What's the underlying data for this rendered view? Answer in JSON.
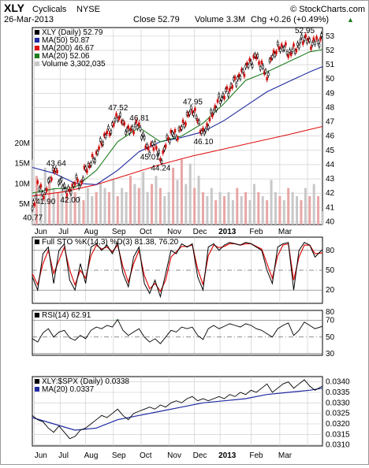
{
  "header": {
    "symbol": "XLY",
    "name": "Cyclicals",
    "exchange": "NYSE",
    "date": "26-Mar-2013",
    "close_text": "Close 52.79",
    "volume_text": "Volume 3.3M",
    "chg_text": "Chg +0.26 (+0.49%)",
    "chg_arrow": "▲",
    "copyright": "© StockCharts.com"
  },
  "colors": {
    "price": "#000000",
    "ma50": "#1f2aa0",
    "ma200": "#e01010",
    "ma20": "#1e7d1e",
    "volume_up": "#c8c8c8",
    "volume_down": "#e8a6a6",
    "sto_k": "#000000",
    "sto_d": "#e01010",
    "rsi": "#000000",
    "rsi_fill": "#6ab86a",
    "ratio": "#000000",
    "ratio_ma": "#1f2aa0",
    "chg_arrow": "#1e7d1e"
  },
  "x_labels": [
    "Jun",
    "Jul",
    "Aug",
    "Sep",
    "Oct",
    "Nov",
    "Dec",
    "2013",
    "Feb",
    "Mar"
  ],
  "chart_data": [
    {
      "type": "line",
      "legend": [
        {
          "label": "XLY (Daily) 52.79",
          "color_key": "price"
        },
        {
          "label": "MA(50) 50.87",
          "color_key": "ma50"
        },
        {
          "label": "MA(200) 46.67",
          "color_key": "ma200"
        },
        {
          "label": "MA(20) 52.06",
          "color_key": "ma20"
        },
        {
          "label": "Volume 3,302,035",
          "color_key": "volume_up"
        }
      ],
      "ylim": [
        39.8,
        53.6
      ],
      "y_ticks": [
        40,
        41,
        42,
        43,
        44,
        45,
        46,
        47,
        48,
        49,
        50,
        51,
        52,
        53
      ],
      "volume_ticks": [
        "5M",
        "10M",
        "15M",
        "20M"
      ],
      "volume_tick_values": [
        5,
        10,
        15,
        20
      ],
      "volume_ylim": [
        0,
        33
      ],
      "series": [
        {
          "key": "price",
          "x": [
            0,
            2,
            5,
            8,
            12,
            15,
            18,
            22,
            26,
            30,
            35,
            40,
            45,
            50,
            55,
            60,
            65,
            70,
            75,
            80,
            85,
            90,
            95,
            100,
            105,
            110,
            115,
            120,
            125,
            130,
            135,
            140,
            145,
            150,
            155,
            160,
            165,
            170,
            175,
            180,
            185,
            190,
            195,
            200,
            205,
            210,
            215,
            220,
            225,
            230,
            235,
            240,
            245,
            250,
            255,
            260,
            265,
            268,
            270,
            272
          ],
          "y": [
            40.77,
            41.3,
            42.6,
            42.2,
            41.9,
            42.7,
            43.3,
            43.64,
            42.8,
            42.4,
            42.0,
            42.9,
            42.6,
            43.7,
            44.1,
            44.7,
            45.6,
            46.2,
            46.6,
            47.52,
            46.9,
            46.3,
            46.6,
            46.81,
            45.6,
            45.01,
            45.5,
            44.24,
            45.4,
            46.2,
            46.0,
            46.6,
            47.3,
            47.95,
            47.1,
            46.1,
            46.9,
            47.8,
            48.5,
            48.9,
            49.3,
            49.9,
            50.2,
            50.8,
            51.2,
            51.6,
            50.9,
            50.2,
            51.7,
            52.1,
            52.3,
            51.8,
            52.0,
            52.4,
            52.95,
            52.5,
            52.6,
            52.7,
            52.79,
            52.79
          ]
        },
        {
          "key": "ma20",
          "x": [
            0,
            20,
            40,
            60,
            80,
            100,
            120,
            140,
            160,
            180,
            200,
            220,
            240,
            260,
            272
          ],
          "y": [
            42.0,
            42.3,
            42.4,
            43.6,
            45.6,
            46.6,
            45.6,
            46.0,
            46.9,
            48.3,
            49.9,
            50.5,
            51.2,
            51.9,
            52.06
          ]
        },
        {
          "key": "ma50",
          "x": [
            0,
            20,
            40,
            60,
            80,
            100,
            120,
            140,
            160,
            180,
            200,
            220,
            240,
            260,
            272
          ],
          "y": [
            43.8,
            43.4,
            42.7,
            42.6,
            43.6,
            44.9,
            45.6,
            45.9,
            46.3,
            47.1,
            48.1,
            49.1,
            49.8,
            50.5,
            50.87
          ]
        },
        {
          "key": "ma200",
          "x": [
            0,
            30,
            60,
            90,
            120,
            150,
            180,
            210,
            240,
            272
          ],
          "y": [
            41.8,
            42.1,
            42.6,
            43.3,
            44.0,
            44.6,
            45.1,
            45.6,
            46.1,
            46.67
          ]
        },
        {
          "key": "volume",
          "x": [
            0,
            4,
            8,
            12,
            16,
            20,
            24,
            28,
            32,
            36,
            40,
            44,
            48,
            52,
            56,
            60,
            64,
            68,
            72,
            76,
            80,
            84,
            88,
            92,
            96,
            100,
            104,
            108,
            112,
            116,
            120,
            124,
            128,
            132,
            136,
            140,
            144,
            148,
            152,
            156,
            160,
            164,
            168,
            172,
            176,
            180,
            184,
            188,
            192,
            196,
            200,
            204,
            208,
            212,
            216,
            220,
            224,
            228,
            232,
            236,
            240,
            244,
            248,
            252,
            256,
            260,
            264,
            268,
            272
          ],
          "y": [
            16,
            12,
            10,
            14,
            11,
            9,
            8,
            10,
            7,
            9,
            8,
            7,
            6,
            9,
            7,
            8,
            10,
            9,
            8,
            11,
            7,
            9,
            8,
            12,
            10,
            9,
            13,
            8,
            10,
            12,
            9,
            7,
            8,
            14,
            11,
            16,
            10,
            15,
            9,
            12,
            8,
            7,
            9,
            6,
            8,
            7,
            8,
            6,
            9,
            7,
            8,
            6,
            10,
            8,
            7,
            6,
            11,
            8,
            7,
            6,
            9,
            8,
            7,
            6,
            9,
            7,
            10,
            7,
            3.3
          ],
          "up": [
            1,
            0,
            1,
            1,
            0,
            1,
            0,
            1,
            0,
            1,
            0,
            1,
            0,
            1,
            1,
            0,
            1,
            1,
            0,
            1,
            0,
            1,
            1,
            0,
            1,
            0,
            1,
            1,
            0,
            1,
            0,
            1,
            1,
            0,
            1,
            0,
            1,
            1,
            0,
            1,
            0,
            1,
            1,
            0,
            1,
            0,
            1,
            1,
            0,
            1,
            0,
            1,
            1,
            0,
            1,
            0,
            1,
            1,
            0,
            1,
            0,
            1,
            1,
            0,
            1,
            0,
            1,
            0,
            1
          ]
        }
      ],
      "annotations": [
        {
          "x": 0,
          "y": 40.77,
          "text": "40.77"
        },
        {
          "x": 12,
          "y": 41.9,
          "text": "41.90"
        },
        {
          "x": 22,
          "y": 43.64,
          "text": "43.64"
        },
        {
          "x": 35,
          "y": 42.0,
          "text": "42.00"
        },
        {
          "x": 80,
          "y": 47.52,
          "text": "47.52"
        },
        {
          "x": 100,
          "y": 46.81,
          "text": "46.81"
        },
        {
          "x": 110,
          "y": 45.01,
          "text": "45.01"
        },
        {
          "x": 120,
          "y": 44.24,
          "text": "44.24"
        },
        {
          "x": 150,
          "y": 47.95,
          "text": "47.95"
        },
        {
          "x": 160,
          "y": 46.1,
          "text": "46.10"
        },
        {
          "x": 255,
          "y": 52.95,
          "text": "52.95"
        }
      ]
    },
    {
      "type": "line",
      "legend": [
        {
          "label": "Full STO %K(14,3) %D(3) 81.38, 76.20",
          "color_key": "sto_k"
        }
      ],
      "ylim": [
        0,
        100
      ],
      "y_ticks": [
        20,
        50,
        80
      ],
      "series": [
        {
          "key": "sto_k",
          "x": [
            0,
            5,
            10,
            15,
            20,
            25,
            30,
            35,
            40,
            45,
            50,
            55,
            60,
            65,
            70,
            75,
            80,
            85,
            90,
            95,
            100,
            105,
            110,
            115,
            120,
            125,
            130,
            135,
            140,
            145,
            150,
            155,
            160,
            165,
            170,
            175,
            180,
            185,
            190,
            195,
            200,
            205,
            210,
            215,
            220,
            225,
            230,
            235,
            240,
            245,
            250,
            255,
            260,
            265,
            272
          ],
          "y": [
            40,
            20,
            75,
            85,
            30,
            80,
            90,
            35,
            20,
            60,
            30,
            85,
            90,
            80,
            88,
            75,
            92,
            45,
            25,
            70,
            85,
            30,
            15,
            35,
            10,
            45,
            80,
            75,
            90,
            85,
            90,
            40,
            20,
            85,
            90,
            80,
            88,
            92,
            90,
            88,
            92,
            90,
            85,
            80,
            50,
            30,
            85,
            90,
            92,
            20,
            80,
            92,
            88,
            70,
            81.38
          ]
        },
        {
          "key": "sto_d",
          "x": [
            0,
            5,
            10,
            15,
            20,
            25,
            30,
            35,
            40,
            45,
            50,
            55,
            60,
            65,
            70,
            75,
            80,
            85,
            90,
            95,
            100,
            105,
            110,
            115,
            120,
            125,
            130,
            135,
            140,
            145,
            150,
            155,
            160,
            165,
            170,
            175,
            180,
            185,
            190,
            195,
            200,
            205,
            210,
            215,
            220,
            225,
            230,
            235,
            240,
            245,
            250,
            255,
            260,
            265,
            272
          ],
          "y": [
            45,
            28,
            60,
            80,
            45,
            65,
            85,
            50,
            28,
            50,
            38,
            72,
            88,
            82,
            85,
            78,
            88,
            55,
            32,
            60,
            80,
            42,
            22,
            30,
            18,
            35,
            70,
            78,
            86,
            86,
            88,
            52,
            28,
            72,
            88,
            84,
            86,
            90,
            90,
            88,
            90,
            90,
            86,
            82,
            60,
            38,
            72,
            88,
            90,
            35,
            70,
            88,
            88,
            75,
            76.2
          ]
        }
      ]
    },
    {
      "type": "line",
      "legend": [
        {
          "label": "RSI(14) 62.91",
          "color_key": "rsi"
        }
      ],
      "ylim": [
        28,
        82
      ],
      "y_ticks": [
        30,
        50,
        70,
        80
      ],
      "series": [
        {
          "key": "rsi",
          "x": [
            0,
            5,
            10,
            15,
            20,
            25,
            30,
            35,
            40,
            45,
            50,
            55,
            60,
            65,
            70,
            75,
            80,
            85,
            90,
            95,
            100,
            105,
            110,
            115,
            120,
            125,
            130,
            135,
            140,
            145,
            150,
            155,
            160,
            165,
            170,
            175,
            180,
            185,
            190,
            195,
            200,
            205,
            210,
            215,
            220,
            225,
            230,
            235,
            240,
            245,
            250,
            255,
            260,
            265,
            272
          ],
          "y": [
            48,
            44,
            55,
            60,
            50,
            56,
            58,
            49,
            46,
            52,
            48,
            58,
            62,
            60,
            64,
            62,
            71,
            58,
            52,
            56,
            60,
            50,
            44,
            48,
            42,
            50,
            58,
            56,
            62,
            60,
            62,
            52,
            47,
            60,
            64,
            60,
            63,
            66,
            64,
            62,
            66,
            64,
            60,
            58,
            54,
            50,
            60,
            64,
            67,
            52,
            58,
            68,
            64,
            60,
            62.91
          ]
        }
      ]
    },
    {
      "type": "line",
      "legend": [
        {
          "label": "XLY:$SPX (Daily) 0.0338",
          "color_key": "ratio"
        },
        {
          "label": "MA(20) 0.0337",
          "color_key": "ratio_ma"
        }
      ],
      "ylim": [
        0.03095,
        0.03425
      ],
      "y_ticks": [
        "0.0310",
        "0.0315",
        "0.0320",
        "0.0325",
        "0.0330",
        "0.0335",
        "0.0340"
      ],
      "y_tick_values": [
        0.031,
        0.0315,
        0.032,
        0.0325,
        0.033,
        0.0335,
        0.034
      ],
      "series": [
        {
          "key": "ratio",
          "x": [
            0,
            5,
            10,
            15,
            20,
            25,
            30,
            35,
            40,
            45,
            50,
            55,
            60,
            65,
            70,
            75,
            80,
            85,
            90,
            95,
            100,
            105,
            110,
            115,
            120,
            125,
            130,
            135,
            140,
            145,
            150,
            155,
            160,
            165,
            170,
            175,
            180,
            185,
            190,
            195,
            200,
            205,
            210,
            215,
            220,
            225,
            230,
            235,
            240,
            245,
            250,
            255,
            260,
            265,
            272
          ],
          "y": [
            0.0324,
            0.0322,
            0.0321,
            0.0318,
            0.0316,
            0.0319,
            0.0316,
            0.0313,
            0.0314,
            0.0317,
            0.0318,
            0.032,
            0.0322,
            0.0324,
            0.0323,
            0.0325,
            0.0327,
            0.0324,
            0.0322,
            0.0325,
            0.0326,
            0.0327,
            0.0328,
            0.0327,
            0.0329,
            0.0328,
            0.033,
            0.0331,
            0.033,
            0.0332,
            0.0333,
            0.0331,
            0.0332,
            0.0331,
            0.0332,
            0.0333,
            0.0332,
            0.0334,
            0.0333,
            0.0335,
            0.0334,
            0.0336,
            0.0335,
            0.0337,
            0.0339,
            0.0335,
            0.0337,
            0.0339,
            0.034,
            0.0337,
            0.0339,
            0.0341,
            0.0338,
            0.0336,
            0.0338
          ]
        },
        {
          "key": "ratio_ma",
          "x": [
            0,
            20,
            40,
            60,
            80,
            100,
            120,
            140,
            160,
            180,
            200,
            220,
            240,
            260,
            272
          ],
          "y": [
            0.0323,
            0.032,
            0.0317,
            0.0318,
            0.0322,
            0.0324,
            0.0326,
            0.0328,
            0.033,
            0.0331,
            0.0332,
            0.0334,
            0.0335,
            0.0336,
            0.0337
          ]
        }
      ]
    }
  ]
}
